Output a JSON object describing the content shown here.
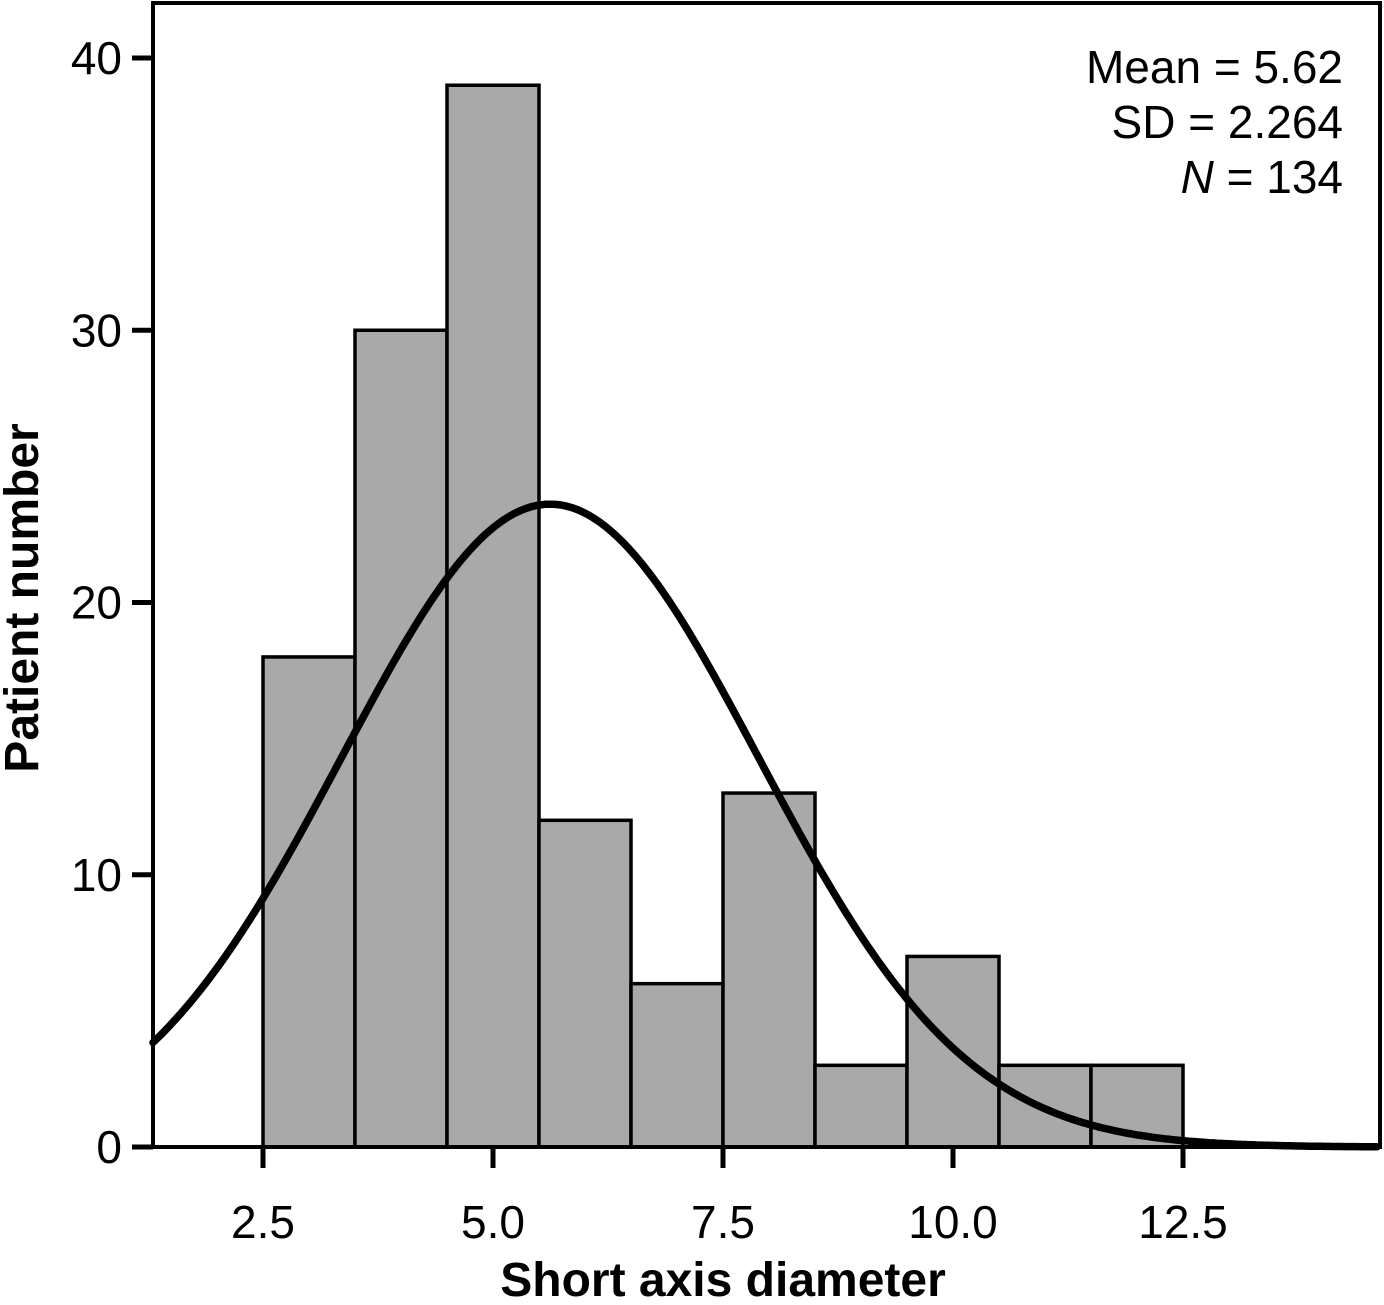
{
  "chart_data": {
    "type": "bar",
    "subtype": "histogram",
    "title": "",
    "xlabel": "Short axis diameter",
    "ylabel": "Patient number",
    "bin_edges": [
      2.5,
      3.5,
      4.5,
      5.5,
      6.5,
      7.5,
      8.5,
      9.5,
      10.5,
      11.5,
      12.5
    ],
    "bin_centers": [
      3,
      4,
      5,
      6,
      7,
      8,
      9,
      10,
      11,
      12
    ],
    "values": [
      18,
      30,
      39,
      12,
      6,
      13,
      3,
      7,
      3,
      3
    ],
    "x_ticks": [
      {
        "value": 2.5,
        "label": "2.5"
      },
      {
        "value": 5.0,
        "label": "5.0"
      },
      {
        "value": 7.5,
        "label": "7.5"
      },
      {
        "value": 10.0,
        "label": "10.0"
      },
      {
        "value": 12.5,
        "label": "12.5"
      }
    ],
    "y_ticks": [
      {
        "value": 0,
        "label": "0"
      },
      {
        "value": 10,
        "label": "10"
      },
      {
        "value": 20,
        "label": "20"
      },
      {
        "value": 30,
        "label": "30"
      },
      {
        "value": 40,
        "label": "40"
      }
    ],
    "xlim": [
      1.3,
      14.65
    ],
    "ylim": [
      0,
      42
    ],
    "grid": false,
    "legend": null,
    "normal_curve": {
      "mean": 5.62,
      "sd": 2.264,
      "n": 134,
      "bin_width": 1.0
    },
    "annotations": [
      {
        "label": "Mean",
        "value": "5.62",
        "italic_label": false
      },
      {
        "label": "SD",
        "value": "2.264",
        "italic_label": false
      },
      {
        "label": "N",
        "value": "134",
        "italic_label": true
      }
    ],
    "colors": {
      "bar_fill": "#a9a9a9",
      "bar_stroke": "#000000",
      "curve": "#000000",
      "axis": "#000000",
      "text": "#000000",
      "background": "#ffffff"
    }
  }
}
